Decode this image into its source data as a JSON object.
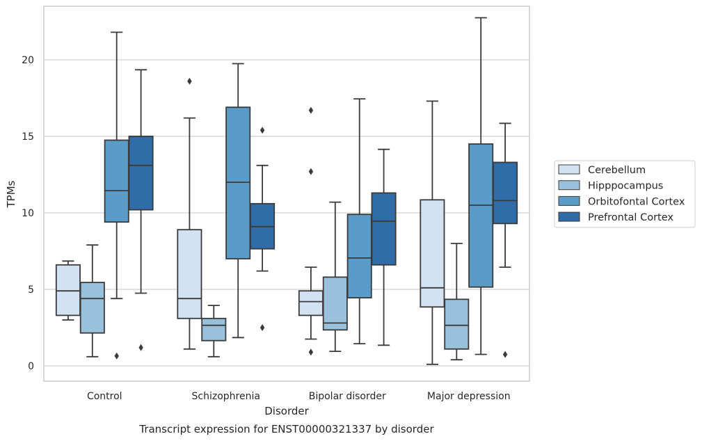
{
  "chart_data": {
    "type": "box",
    "title": "",
    "caption": "Transcript expression for ENST00000321337 by disorder",
    "xlabel": "Disorder",
    "ylabel": "TPMs",
    "categories": [
      "Control",
      "Schizophrenia",
      "Bipolar disorder",
      "Major depression"
    ],
    "ylim": [
      -1,
      23.5
    ],
    "yticks": [
      0,
      5,
      10,
      15,
      20
    ],
    "grid": true,
    "legend_position": "right",
    "series": [
      {
        "name": "Cerebellum",
        "color": "#d2e2f2",
        "boxes": [
          {
            "whislo": 3.0,
            "q1": 3.3,
            "med": 4.9,
            "q3": 6.6,
            "whishi": 6.85,
            "fliers": []
          },
          {
            "whislo": 1.1,
            "q1": 3.1,
            "med": 4.4,
            "q3": 8.9,
            "whishi": 16.2,
            "fliers": [
              18.6
            ]
          },
          {
            "whislo": 1.75,
            "q1": 3.3,
            "med": 4.2,
            "q3": 4.9,
            "whishi": 6.45,
            "fliers": [
              0.9,
              12.7,
              16.7
            ]
          },
          {
            "whislo": 0.1,
            "q1": 3.85,
            "med": 5.1,
            "q3": 10.85,
            "whishi": 17.3,
            "fliers": []
          }
        ]
      },
      {
        "name": "Hipppocampus",
        "color": "#9ac1db",
        "boxes": [
          {
            "whislo": 0.6,
            "q1": 2.15,
            "med": 4.4,
            "q3": 5.45,
            "whishi": 7.9,
            "fliers": []
          },
          {
            "whislo": 0.6,
            "q1": 1.65,
            "med": 2.65,
            "q3": 3.1,
            "whishi": 3.95,
            "fliers": []
          },
          {
            "whislo": 0.95,
            "q1": 2.35,
            "med": 2.8,
            "q3": 5.8,
            "whishi": 10.7,
            "fliers": []
          },
          {
            "whislo": 0.4,
            "q1": 1.1,
            "med": 2.65,
            "q3": 4.35,
            "whishi": 8.0,
            "fliers": []
          }
        ]
      },
      {
        "name": "Orbitofontal Cortex",
        "color": "#5b9bc8",
        "boxes": [
          {
            "whislo": 4.4,
            "q1": 9.4,
            "med": 11.45,
            "q3": 14.75,
            "whishi": 21.8,
            "fliers": [
              0.65
            ]
          },
          {
            "whislo": 1.85,
            "q1": 7.0,
            "med": 12.0,
            "q3": 16.9,
            "whishi": 19.75,
            "fliers": []
          },
          {
            "whislo": 1.45,
            "q1": 4.45,
            "med": 7.05,
            "q3": 9.9,
            "whishi": 17.45,
            "fliers": []
          },
          {
            "whislo": 0.75,
            "q1": 5.15,
            "med": 10.5,
            "q3": 14.5,
            "whishi": 22.75,
            "fliers": []
          }
        ]
      },
      {
        "name": "Prefrontal Cortex",
        "color": "#2f6ca8",
        "boxes": [
          {
            "whislo": 4.75,
            "q1": 10.2,
            "med": 13.1,
            "q3": 15.0,
            "whishi": 19.35,
            "fliers": [
              1.2
            ]
          },
          {
            "whislo": 6.2,
            "q1": 7.65,
            "med": 9.1,
            "q3": 10.6,
            "whishi": 13.1,
            "fliers": [
              2.5,
              15.4
            ]
          },
          {
            "whislo": 1.35,
            "q1": 6.6,
            "med": 9.45,
            "q3": 11.3,
            "whishi": 14.15,
            "fliers": []
          },
          {
            "whislo": 6.45,
            "q1": 9.3,
            "med": 10.8,
            "q3": 13.3,
            "whishi": 15.85,
            "fliers": [
              0.75
            ]
          }
        ]
      }
    ]
  }
}
